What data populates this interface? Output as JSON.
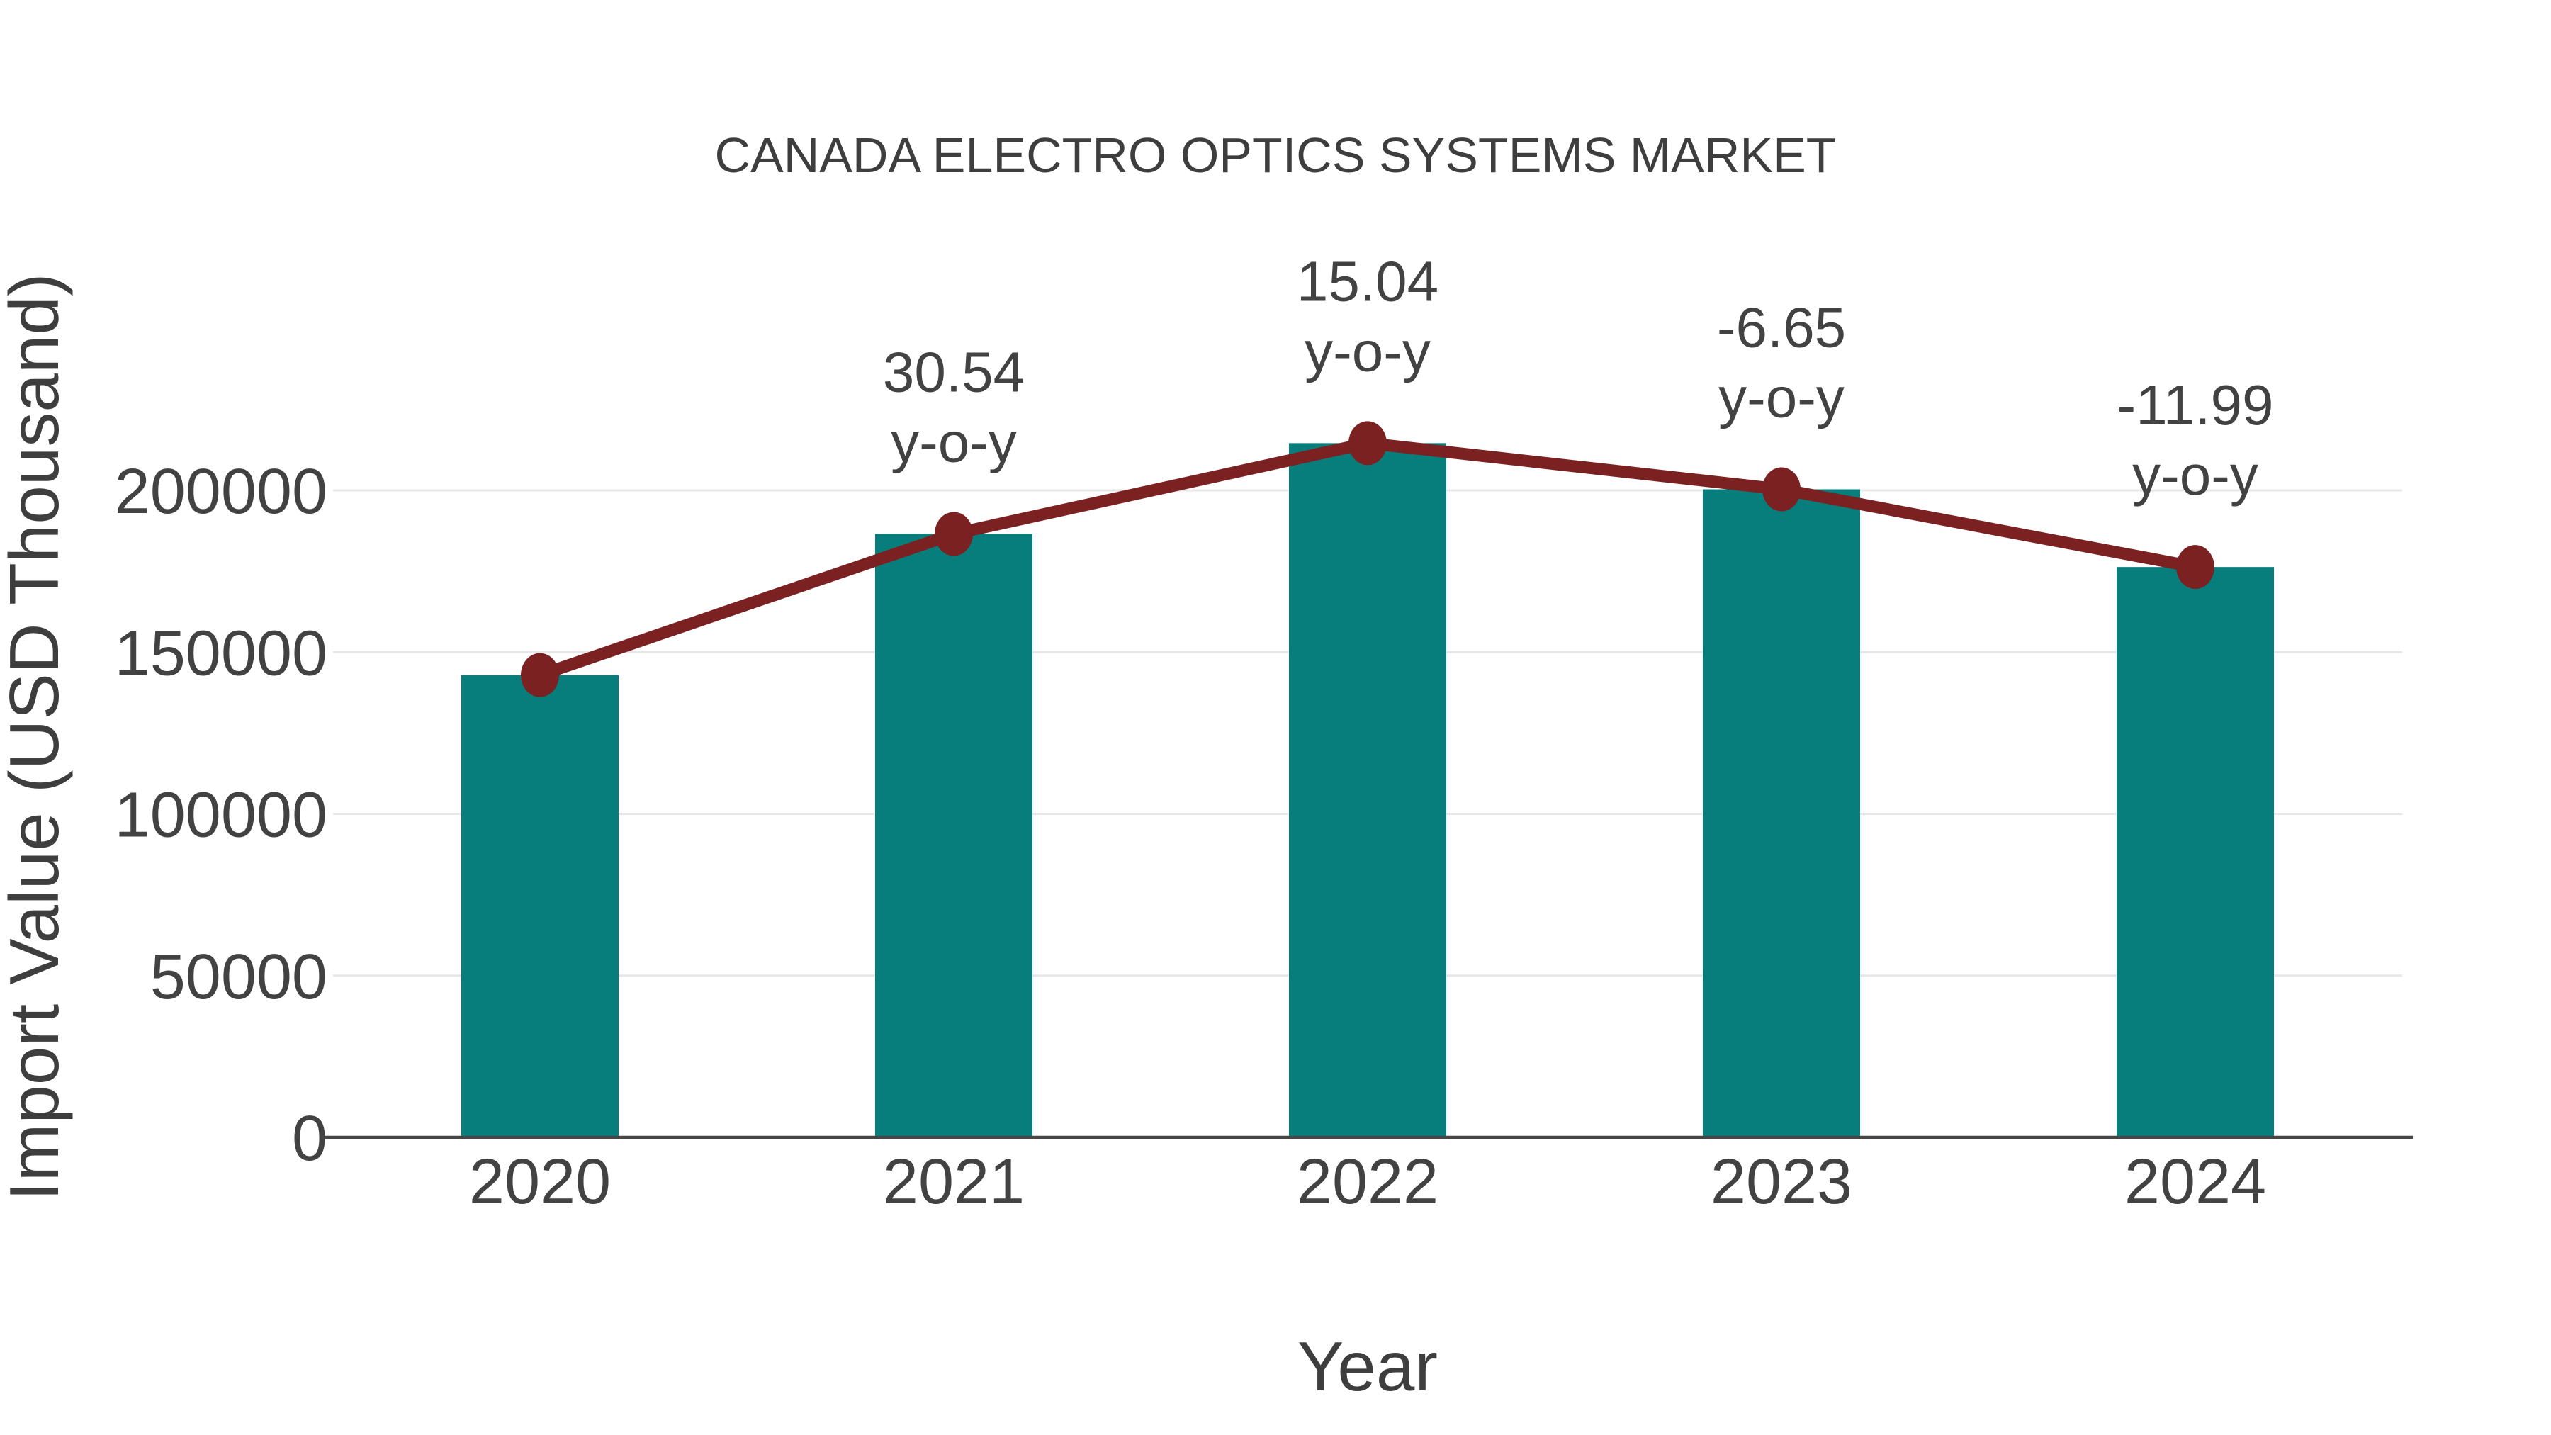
{
  "page": {
    "background": "#FFFFFF"
  },
  "chart_data": {
    "type": "bar",
    "title": "CANADA ELECTRO OPTICS SYSTEMS MARKET",
    "xlabel": "Year",
    "ylabel": "Import Value (USD Thousand)",
    "categories": [
      "2020",
      "2021",
      "2022",
      "2023",
      "2024"
    ],
    "series": [
      {
        "name": "Import Value",
        "type": "bar",
        "color": "#077E7B",
        "values": [
          142900,
          186540,
          214600,
          200330,
          176310
        ]
      },
      {
        "name": "y-o-y trend line",
        "type": "line",
        "color": "#7C2121",
        "marker": "circle",
        "values": [
          142900,
          186540,
          214600,
          200330,
          176310
        ]
      }
    ],
    "yoy_percent": [
      null,
      30.54,
      15.04,
      -6.65,
      -11.99
    ],
    "annotations": [
      {
        "category": "2021",
        "line1": "30.54",
        "line2": "y-o-y"
      },
      {
        "category": "2022",
        "line1": "15.04",
        "line2": "y-o-y"
      },
      {
        "category": "2023",
        "line1": "-6.65",
        "line2": "y-o-y"
      },
      {
        "category": "2024",
        "line1": "-11.99",
        "line2": "y-o-y"
      }
    ],
    "yticks": [
      0,
      50000,
      100000,
      150000,
      200000
    ],
    "ylim": [
      0,
      226000
    ],
    "grid": true,
    "legend": "none",
    "colors": {
      "bar": "#077E7B",
      "line": "#7C2121",
      "gridline": "#E7E7E7",
      "axisline": "#474747",
      "text": "#404040"
    }
  }
}
